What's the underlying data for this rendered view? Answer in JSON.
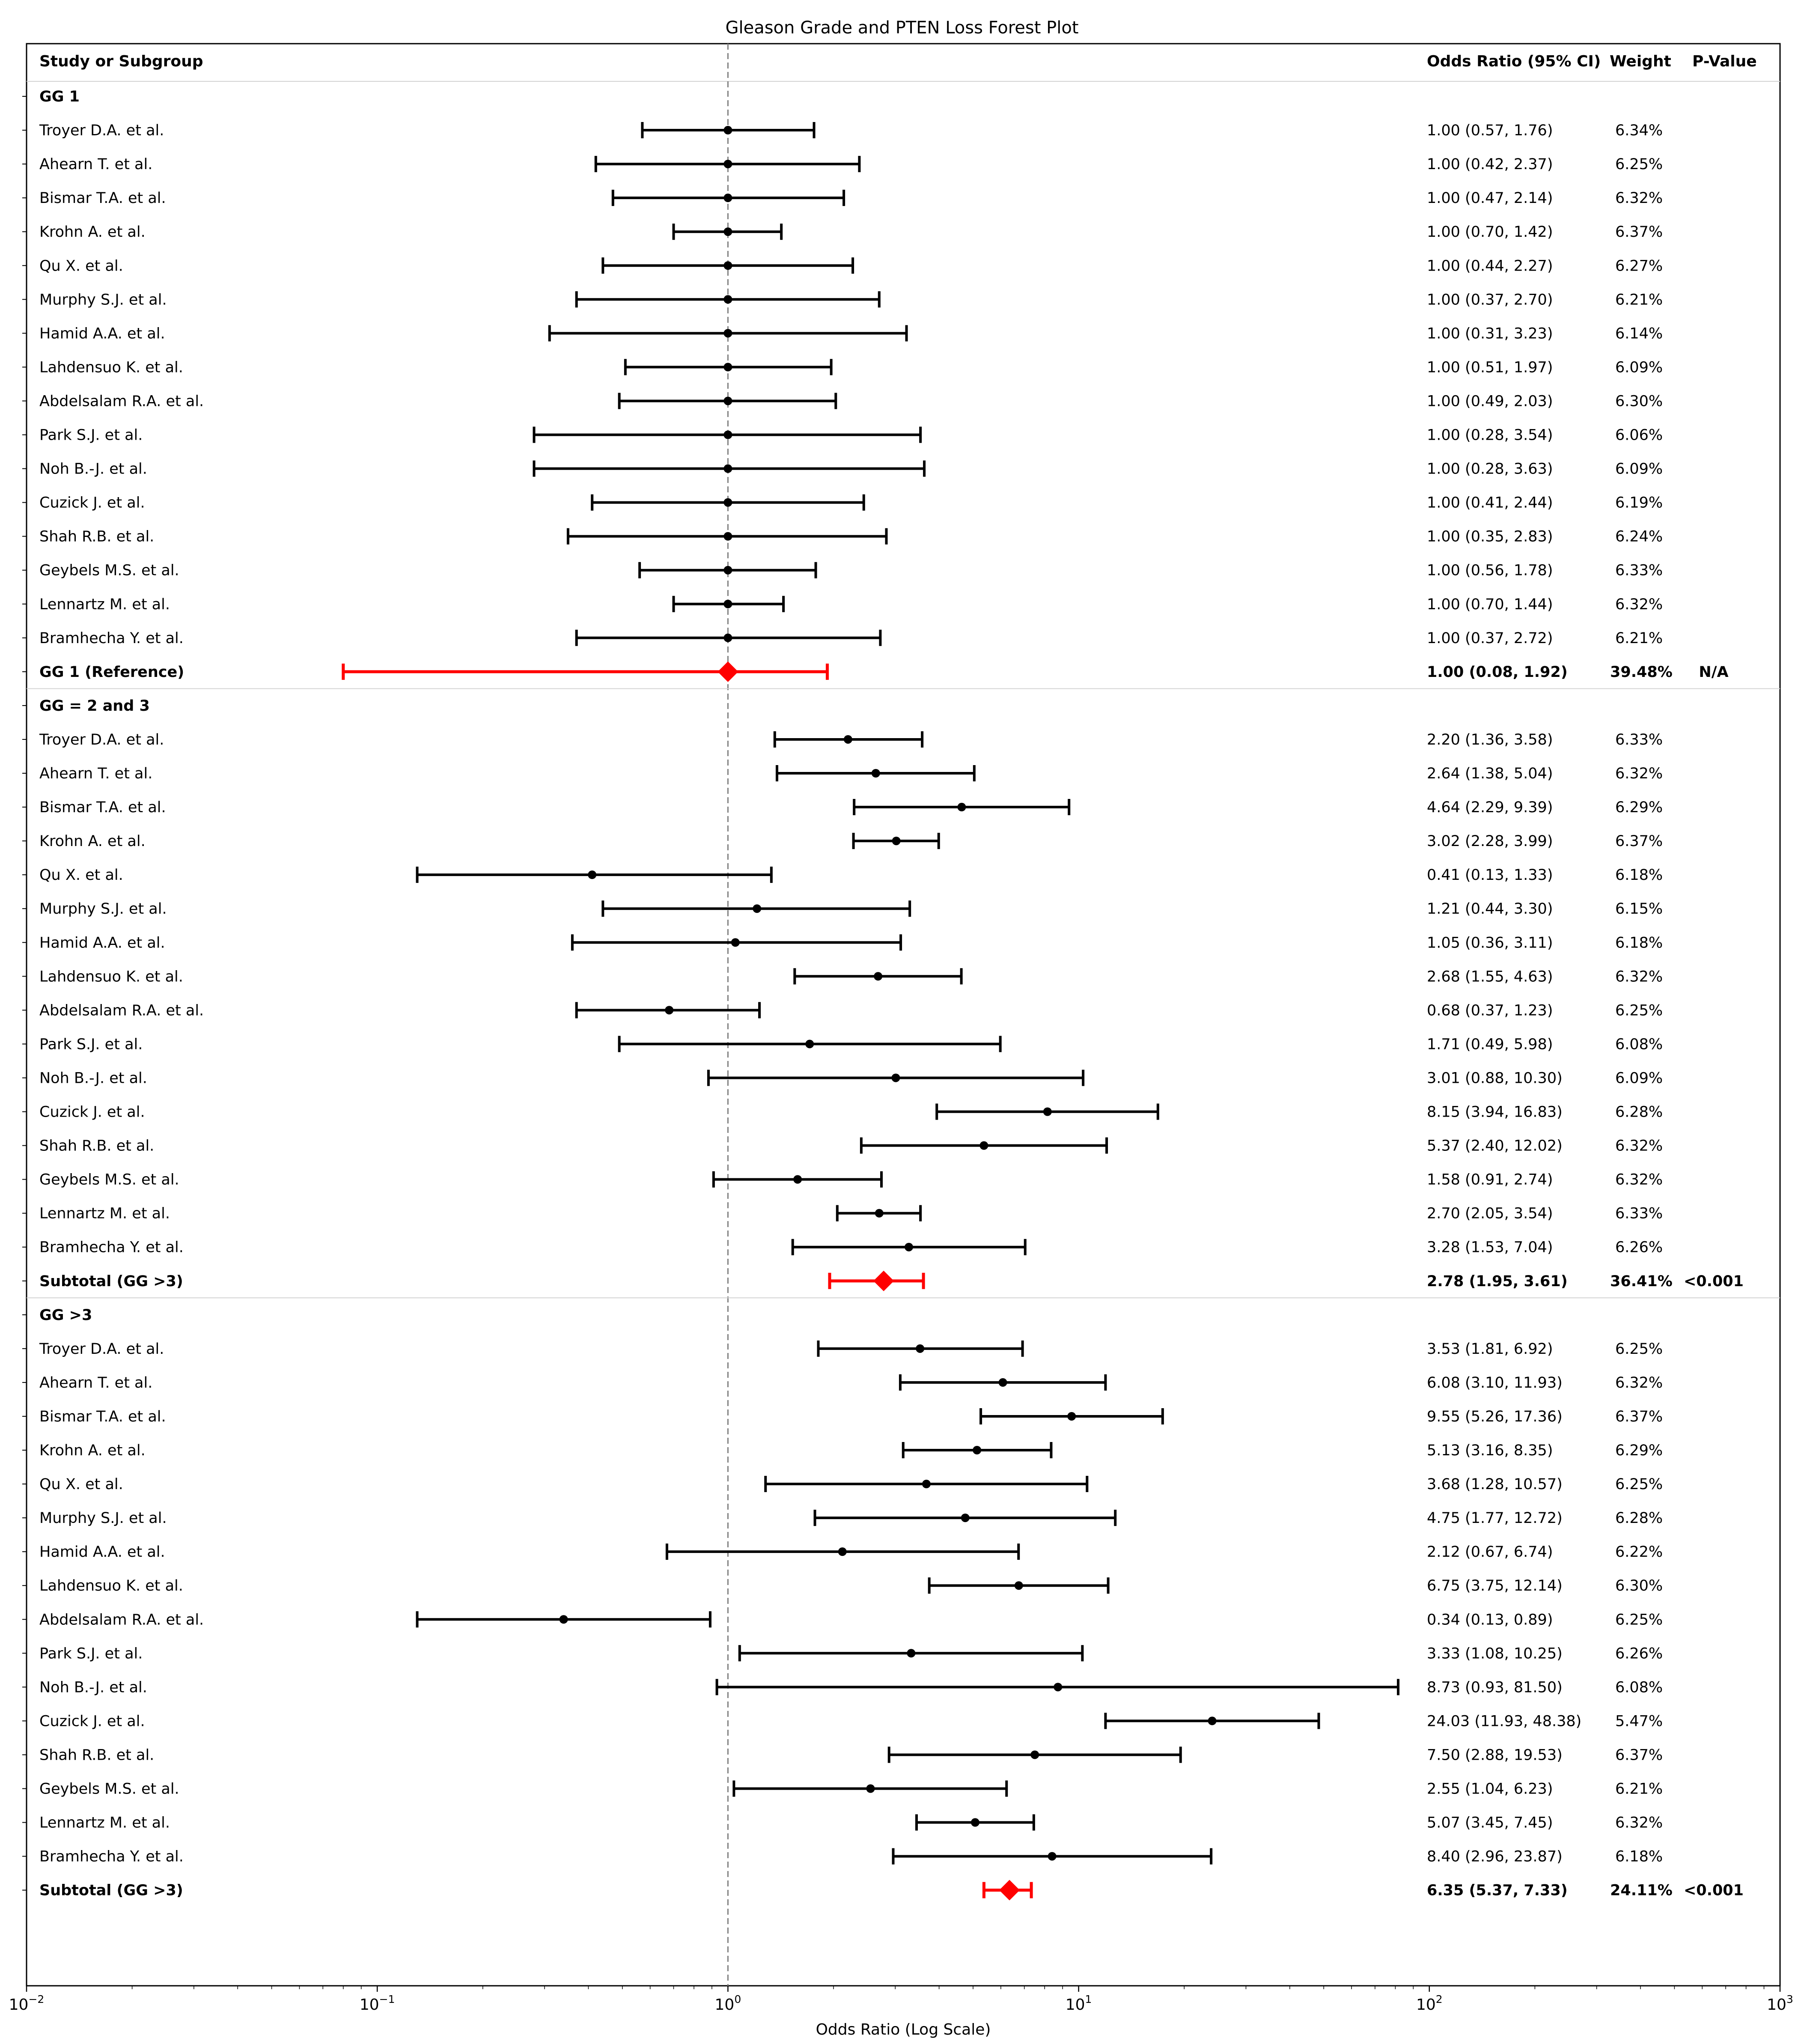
{
  "chart_data": {
    "type": "forest",
    "title": "Gleason Grade and PTEN Loss Forest Plot",
    "xlabel": "Odds Ratio (Log Scale)",
    "xscale": "log",
    "xlim": [
      0.01,
      1000
    ],
    "x_ticks": [
      {
        "value": 0.01,
        "base": "10",
        "exp": "−2"
      },
      {
        "value": 0.1,
        "base": "10",
        "exp": "−1"
      },
      {
        "value": 1,
        "base": "10",
        "exp": "0"
      },
      {
        "value": 10,
        "base": "10",
        "exp": "1"
      },
      {
        "value": 100,
        "base": "10",
        "exp": "2"
      },
      {
        "value": 1000,
        "base": "10",
        "exp": "3"
      }
    ],
    "reference_line": 1,
    "colors": {
      "study": "#000000",
      "summary": "#ff0000",
      "reference": "#808080",
      "separator": "#d3d3d3"
    },
    "headers": {
      "study": "Study or Subgroup",
      "or": "Odds Ratio (95% CI)",
      "weight": "Weight",
      "p": "P-Value"
    },
    "groups": [
      {
        "label": "GG 1",
        "studies": [
          {
            "name": "Troyer D.A. et al.",
            "or": 1.0,
            "lo": 0.57,
            "hi": 1.76,
            "ci_text": "1.00 (0.57, 1.76)",
            "weight": "6.34%"
          },
          {
            "name": "Ahearn T. et al.",
            "or": 1.0,
            "lo": 0.42,
            "hi": 2.37,
            "ci_text": "1.00 (0.42, 2.37)",
            "weight": "6.25%"
          },
          {
            "name": "Bismar T.A. et al.",
            "or": 1.0,
            "lo": 0.47,
            "hi": 2.14,
            "ci_text": "1.00 (0.47, 2.14)",
            "weight": "6.32%"
          },
          {
            "name": "Krohn A. et al.",
            "or": 1.0,
            "lo": 0.7,
            "hi": 1.42,
            "ci_text": "1.00 (0.70, 1.42)",
            "weight": "6.37%"
          },
          {
            "name": "Qu X. et al.",
            "or": 1.0,
            "lo": 0.44,
            "hi": 2.27,
            "ci_text": "1.00 (0.44, 2.27)",
            "weight": "6.27%"
          },
          {
            "name": "Murphy S.J. et al.",
            "or": 1.0,
            "lo": 0.37,
            "hi": 2.7,
            "ci_text": "1.00 (0.37, 2.70)",
            "weight": "6.21%"
          },
          {
            "name": "Hamid A.A. et al.",
            "or": 1.0,
            "lo": 0.31,
            "hi": 3.23,
            "ci_text": "1.00 (0.31, 3.23)",
            "weight": "6.14%"
          },
          {
            "name": "Lahdensuo K. et al.",
            "or": 1.0,
            "lo": 0.51,
            "hi": 1.97,
            "ci_text": "1.00 (0.51, 1.97)",
            "weight": "6.09%"
          },
          {
            "name": "Abdelsalam R.A. et al.",
            "or": 1.0,
            "lo": 0.49,
            "hi": 2.03,
            "ci_text": "1.00 (0.49, 2.03)",
            "weight": "6.30%"
          },
          {
            "name": "Park S.J. et al.",
            "or": 1.0,
            "lo": 0.28,
            "hi": 3.54,
            "ci_text": "1.00 (0.28, 3.54)",
            "weight": "6.06%"
          },
          {
            "name": "Noh B.-J. et al.",
            "or": 1.0,
            "lo": 0.28,
            "hi": 3.63,
            "ci_text": "1.00 (0.28, 3.63)",
            "weight": "6.09%"
          },
          {
            "name": "Cuzick J. et al.",
            "or": 1.0,
            "lo": 0.41,
            "hi": 2.44,
            "ci_text": "1.00 (0.41, 2.44)",
            "weight": "6.19%"
          },
          {
            "name": "Shah R.B. et al.",
            "or": 1.0,
            "lo": 0.35,
            "hi": 2.83,
            "ci_text": "1.00 (0.35, 2.83)",
            "weight": "6.24%"
          },
          {
            "name": "Geybels M.S. et al.",
            "or": 1.0,
            "lo": 0.56,
            "hi": 1.78,
            "ci_text": "1.00 (0.56, 1.78)",
            "weight": "6.33%"
          },
          {
            "name": "Lennartz M. et al.",
            "or": 1.0,
            "lo": 0.7,
            "hi": 1.44,
            "ci_text": "1.00 (0.70, 1.44)",
            "weight": "6.32%"
          },
          {
            "name": "Bramhecha Y. et al.",
            "or": 1.0,
            "lo": 0.37,
            "hi": 2.72,
            "ci_text": "1.00 (0.37, 2.72)",
            "weight": "6.21%"
          }
        ],
        "summary": {
          "label": "GG 1 (Reference)",
          "or": 1.0,
          "lo": 0.08,
          "hi": 1.92,
          "ci_text": "1.00 (0.08, 1.92)",
          "weight": "39.48%",
          "p": "N/A"
        }
      },
      {
        "label": "GG = 2 and 3",
        "studies": [
          {
            "name": "Troyer D.A. et al.",
            "or": 2.2,
            "lo": 1.36,
            "hi": 3.58,
            "ci_text": "2.20 (1.36, 3.58)",
            "weight": "6.33%"
          },
          {
            "name": "Ahearn T. et al.",
            "or": 2.64,
            "lo": 1.38,
            "hi": 5.04,
            "ci_text": "2.64 (1.38, 5.04)",
            "weight": "6.32%"
          },
          {
            "name": "Bismar T.A. et al.",
            "or": 4.64,
            "lo": 2.29,
            "hi": 9.39,
            "ci_text": "4.64 (2.29, 9.39)",
            "weight": "6.29%"
          },
          {
            "name": "Krohn A. et al.",
            "or": 3.02,
            "lo": 2.28,
            "hi": 3.99,
            "ci_text": "3.02 (2.28, 3.99)",
            "weight": "6.37%"
          },
          {
            "name": "Qu X. et al.",
            "or": 0.41,
            "lo": 0.13,
            "hi": 1.33,
            "ci_text": "0.41 (0.13, 1.33)",
            "weight": "6.18%"
          },
          {
            "name": "Murphy S.J. et al.",
            "or": 1.21,
            "lo": 0.44,
            "hi": 3.3,
            "ci_text": "1.21 (0.44, 3.30)",
            "weight": "6.15%"
          },
          {
            "name": "Hamid A.A. et al.",
            "or": 1.05,
            "lo": 0.36,
            "hi": 3.11,
            "ci_text": "1.05 (0.36, 3.11)",
            "weight": "6.18%"
          },
          {
            "name": "Lahdensuo K. et al.",
            "or": 2.68,
            "lo": 1.55,
            "hi": 4.63,
            "ci_text": "2.68 (1.55, 4.63)",
            "weight": "6.32%"
          },
          {
            "name": "Abdelsalam R.A. et al.",
            "or": 0.68,
            "lo": 0.37,
            "hi": 1.23,
            "ci_text": "0.68 (0.37, 1.23)",
            "weight": "6.25%"
          },
          {
            "name": "Park S.J. et al.",
            "or": 1.71,
            "lo": 0.49,
            "hi": 5.98,
            "ci_text": "1.71 (0.49, 5.98)",
            "weight": "6.08%"
          },
          {
            "name": "Noh B.-J. et al.",
            "or": 3.01,
            "lo": 0.88,
            "hi": 10.3,
            "ci_text": "3.01 (0.88, 10.30)",
            "weight": "6.09%"
          },
          {
            "name": "Cuzick J. et al.",
            "or": 8.15,
            "lo": 3.94,
            "hi": 16.83,
            "ci_text": "8.15 (3.94, 16.83)",
            "weight": "6.28%"
          },
          {
            "name": "Shah R.B. et al.",
            "or": 5.37,
            "lo": 2.4,
            "hi": 12.02,
            "ci_text": "5.37 (2.40, 12.02)",
            "weight": "6.32%"
          },
          {
            "name": "Geybels M.S. et al.",
            "or": 1.58,
            "lo": 0.91,
            "hi": 2.74,
            "ci_text": "1.58 (0.91, 2.74)",
            "weight": "6.32%"
          },
          {
            "name": "Lennartz M. et al.",
            "or": 2.7,
            "lo": 2.05,
            "hi": 3.54,
            "ci_text": "2.70 (2.05, 3.54)",
            "weight": "6.33%"
          },
          {
            "name": "Bramhecha Y. et al.",
            "or": 3.28,
            "lo": 1.53,
            "hi": 7.04,
            "ci_text": "3.28 (1.53, 7.04)",
            "weight": "6.26%"
          }
        ],
        "summary": {
          "label": "Subtotal (GG >3)",
          "or": 2.78,
          "lo": 1.95,
          "hi": 3.61,
          "ci_text": "2.78 (1.95, 3.61)",
          "weight": "36.41%",
          "p": "<0.001"
        }
      },
      {
        "label": "GG >3",
        "studies": [
          {
            "name": "Troyer D.A. et al.",
            "or": 3.53,
            "lo": 1.81,
            "hi": 6.92,
            "ci_text": "3.53 (1.81, 6.92)",
            "weight": "6.25%"
          },
          {
            "name": "Ahearn T. et al.",
            "or": 6.08,
            "lo": 3.1,
            "hi": 11.93,
            "ci_text": "6.08 (3.10, 11.93)",
            "weight": "6.32%"
          },
          {
            "name": "Bismar T.A. et al.",
            "or": 9.55,
            "lo": 5.26,
            "hi": 17.36,
            "ci_text": "9.55 (5.26, 17.36)",
            "weight": "6.37%"
          },
          {
            "name": "Krohn A. et al.",
            "or": 5.13,
            "lo": 3.16,
            "hi": 8.35,
            "ci_text": "5.13 (3.16, 8.35)",
            "weight": "6.29%"
          },
          {
            "name": "Qu X. et al.",
            "or": 3.68,
            "lo": 1.28,
            "hi": 10.57,
            "ci_text": "3.68 (1.28, 10.57)",
            "weight": "6.25%"
          },
          {
            "name": "Murphy S.J. et al.",
            "or": 4.75,
            "lo": 1.77,
            "hi": 12.72,
            "ci_text": "4.75 (1.77, 12.72)",
            "weight": "6.28%"
          },
          {
            "name": "Hamid A.A. et al.",
            "or": 2.12,
            "lo": 0.67,
            "hi": 6.74,
            "ci_text": "2.12 (0.67, 6.74)",
            "weight": "6.22%"
          },
          {
            "name": "Lahdensuo K. et al.",
            "or": 6.75,
            "lo": 3.75,
            "hi": 12.14,
            "ci_text": "6.75 (3.75, 12.14)",
            "weight": "6.30%"
          },
          {
            "name": "Abdelsalam R.A. et al.",
            "or": 0.34,
            "lo": 0.13,
            "hi": 0.89,
            "ci_text": "0.34 (0.13, 0.89)",
            "weight": "6.25%"
          },
          {
            "name": "Park S.J. et al.",
            "or": 3.33,
            "lo": 1.08,
            "hi": 10.25,
            "ci_text": "3.33 (1.08, 10.25)",
            "weight": "6.26%"
          },
          {
            "name": "Noh B.-J. et al.",
            "or": 8.73,
            "lo": 0.93,
            "hi": 81.5,
            "ci_text": "8.73 (0.93, 81.50)",
            "weight": "6.08%"
          },
          {
            "name": "Cuzick J. et al.",
            "or": 24.03,
            "lo": 11.93,
            "hi": 48.38,
            "ci_text": "24.03 (11.93, 48.38)",
            "weight": "5.47%"
          },
          {
            "name": "Shah R.B. et al.",
            "or": 7.5,
            "lo": 2.88,
            "hi": 19.53,
            "ci_text": "7.50 (2.88, 19.53)",
            "weight": "6.37%"
          },
          {
            "name": "Geybels M.S. et al.",
            "or": 2.55,
            "lo": 1.04,
            "hi": 6.23,
            "ci_text": "2.55 (1.04, 6.23)",
            "weight": "6.21%"
          },
          {
            "name": "Lennartz M. et al.",
            "or": 5.07,
            "lo": 3.45,
            "hi": 7.45,
            "ci_text": "5.07 (3.45, 7.45)",
            "weight": "6.32%"
          },
          {
            "name": "Bramhecha Y. et al.",
            "or": 8.4,
            "lo": 2.96,
            "hi": 23.87,
            "ci_text": "8.40 (2.96, 23.87)",
            "weight": "6.18%"
          }
        ],
        "summary": {
          "label": "Subtotal (GG >3)",
          "or": 6.35,
          "lo": 5.37,
          "hi": 7.33,
          "ci_text": "6.35 (5.37, 7.33)",
          "weight": "24.11%",
          "p": "<0.001"
        }
      }
    ]
  }
}
